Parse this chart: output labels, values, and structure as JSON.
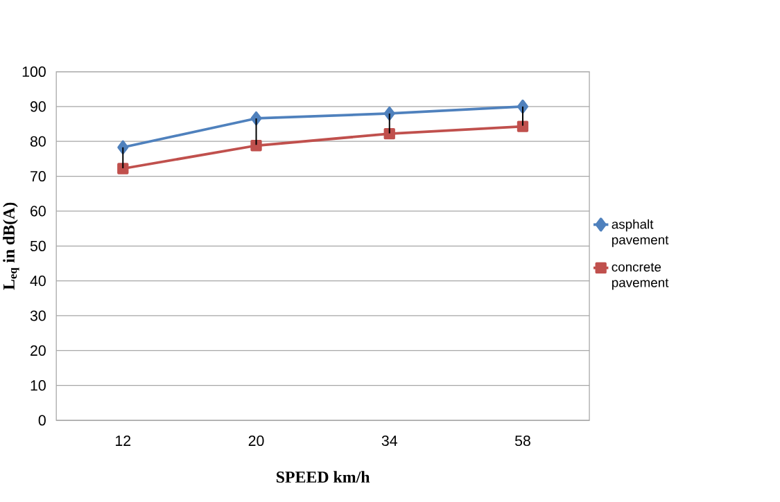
{
  "chart_data": {
    "type": "line",
    "xlabel": "SPEED km/h",
    "ylabel": "L$_{eq}$ in dB(A)",
    "categories": [
      "12",
      "20",
      "34",
      "58"
    ],
    "series": [
      {
        "name": "asphalt pavement",
        "color": "#4f81bd",
        "marker": "diamond",
        "values": [
          78.3,
          86.6,
          88.0,
          90.0
        ],
        "errors": [
          [
            72.3,
            78.3
          ],
          [
            79.0,
            86.6
          ],
          [
            82.3,
            88.0
          ],
          [
            84.5,
            90.0
          ]
        ]
      },
      {
        "name": "concrete pavement",
        "color": "#c0504d",
        "marker": "square",
        "values": [
          72.2,
          78.8,
          82.2,
          84.3
        ]
      }
    ],
    "ylim": [
      0,
      100
    ],
    "yticks": [
      0,
      10,
      20,
      30,
      40,
      50,
      60,
      70,
      80,
      90,
      100
    ],
    "grid": "y",
    "legend": "right"
  }
}
